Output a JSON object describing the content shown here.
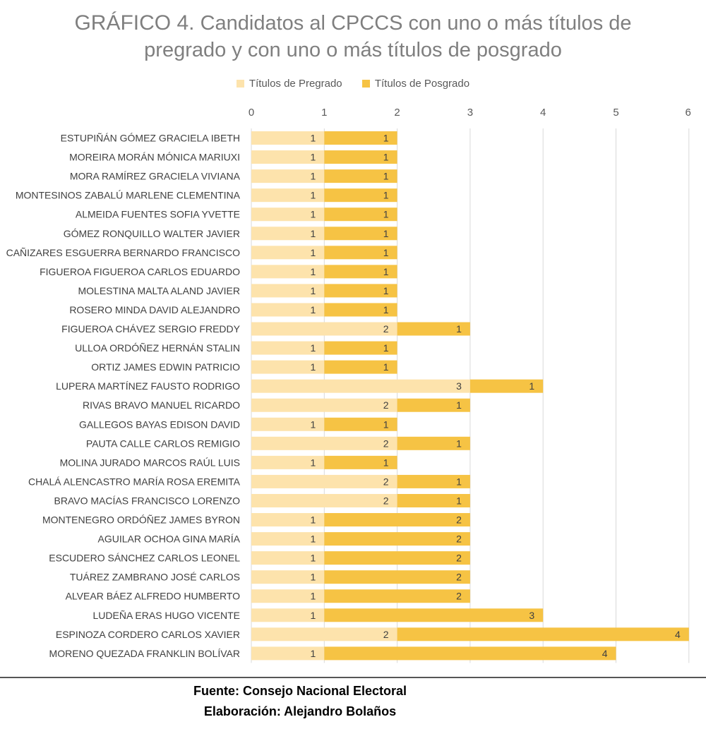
{
  "title": {
    "lead": "GRÁFICO 4.",
    "line1": "Candidatos al CPCCS con uno o más títulos de",
    "line2": "pregrado y con uno o más  títulos de posgrado"
  },
  "footer": {
    "source": "Fuente: Consejo Nacional Electoral",
    "author": "Elaboración: Alejandro Bolaños"
  },
  "colors": {
    "pregrado": "#fde3ac",
    "posgrado": "#f6c344",
    "grid": "#d9d9d9",
    "axis_text": "#595959",
    "label_text": "#404040"
  },
  "chart_data": {
    "type": "bar",
    "orientation": "horizontal",
    "stacked": true,
    "legend_position": "top",
    "grid": true,
    "xlim": [
      0,
      6
    ],
    "x_ticks": [
      0,
      1,
      2,
      3,
      4,
      5,
      6
    ],
    "categories": [
      "ESTUPIÑÁN GÓMEZ GRACIELA IBETH",
      "MOREIRA MORÁN MÓNICA MARIUXI",
      "MORA RAMÍREZ GRACIELA VIVIANA",
      "MONTESINOS ZABALÚ MARLENE CLEMENTINA",
      "ALMEIDA FUENTES SOFIA YVETTE",
      "GÓMEZ RONQUILLO WALTER JAVIER",
      "CAÑIZARES ESGUERRA BERNARDO FRANCISCO",
      "FIGUEROA FIGUEROA CARLOS EDUARDO",
      "MOLESTINA MALTA ALAND JAVIER",
      "ROSERO MINDA DAVID ALEJANDRO",
      "FIGUEROA CHÁVEZ SERGIO FREDDY",
      "ULLOA ORDÓÑEZ HERNÁN STALIN",
      "ORTIZ JAMES EDWIN PATRICIO",
      "LUPERA MARTÍNEZ FAUSTO RODRIGO",
      "RIVAS BRAVO MANUEL RICARDO",
      "GALLEGOS BAYAS EDISON DAVID",
      "PAUTA CALLE CARLOS REMIGIO",
      "MOLINA JURADO MARCOS RAÚL LUIS",
      "CHALÁ ALENCASTRO MARÍA ROSA EREMITA",
      "BRAVO MACÍAS FRANCISCO LORENZO",
      "MONTENEGRO ORDÓÑEZ JAMES BYRON",
      "AGUILAR OCHOA GINA MARÍA",
      "ESCUDERO SÁNCHEZ CARLOS LEONEL",
      "TUÁREZ ZAMBRANO JOSÉ CARLOS",
      "ALVEAR BÁEZ ALFREDO HUMBERTO",
      "LUDEÑA ERAS HUGO VICENTE",
      "ESPINOZA CORDERO CARLOS XAVIER",
      "MORENO QUEZADA FRANKLIN BOLÍVAR"
    ],
    "series": [
      {
        "name": "Títulos de Pregrado",
        "color": "#fde3ac",
        "values": [
          1,
          1,
          1,
          1,
          1,
          1,
          1,
          1,
          1,
          1,
          2,
          1,
          1,
          3,
          2,
          1,
          2,
          1,
          2,
          2,
          1,
          1,
          1,
          1,
          1,
          1,
          2,
          1
        ]
      },
      {
        "name": "Títulos de Posgrado",
        "color": "#f6c344",
        "values": [
          1,
          1,
          1,
          1,
          1,
          1,
          1,
          1,
          1,
          1,
          1,
          1,
          1,
          1,
          1,
          1,
          1,
          1,
          1,
          1,
          2,
          2,
          2,
          2,
          2,
          3,
          4,
          4
        ]
      }
    ]
  }
}
